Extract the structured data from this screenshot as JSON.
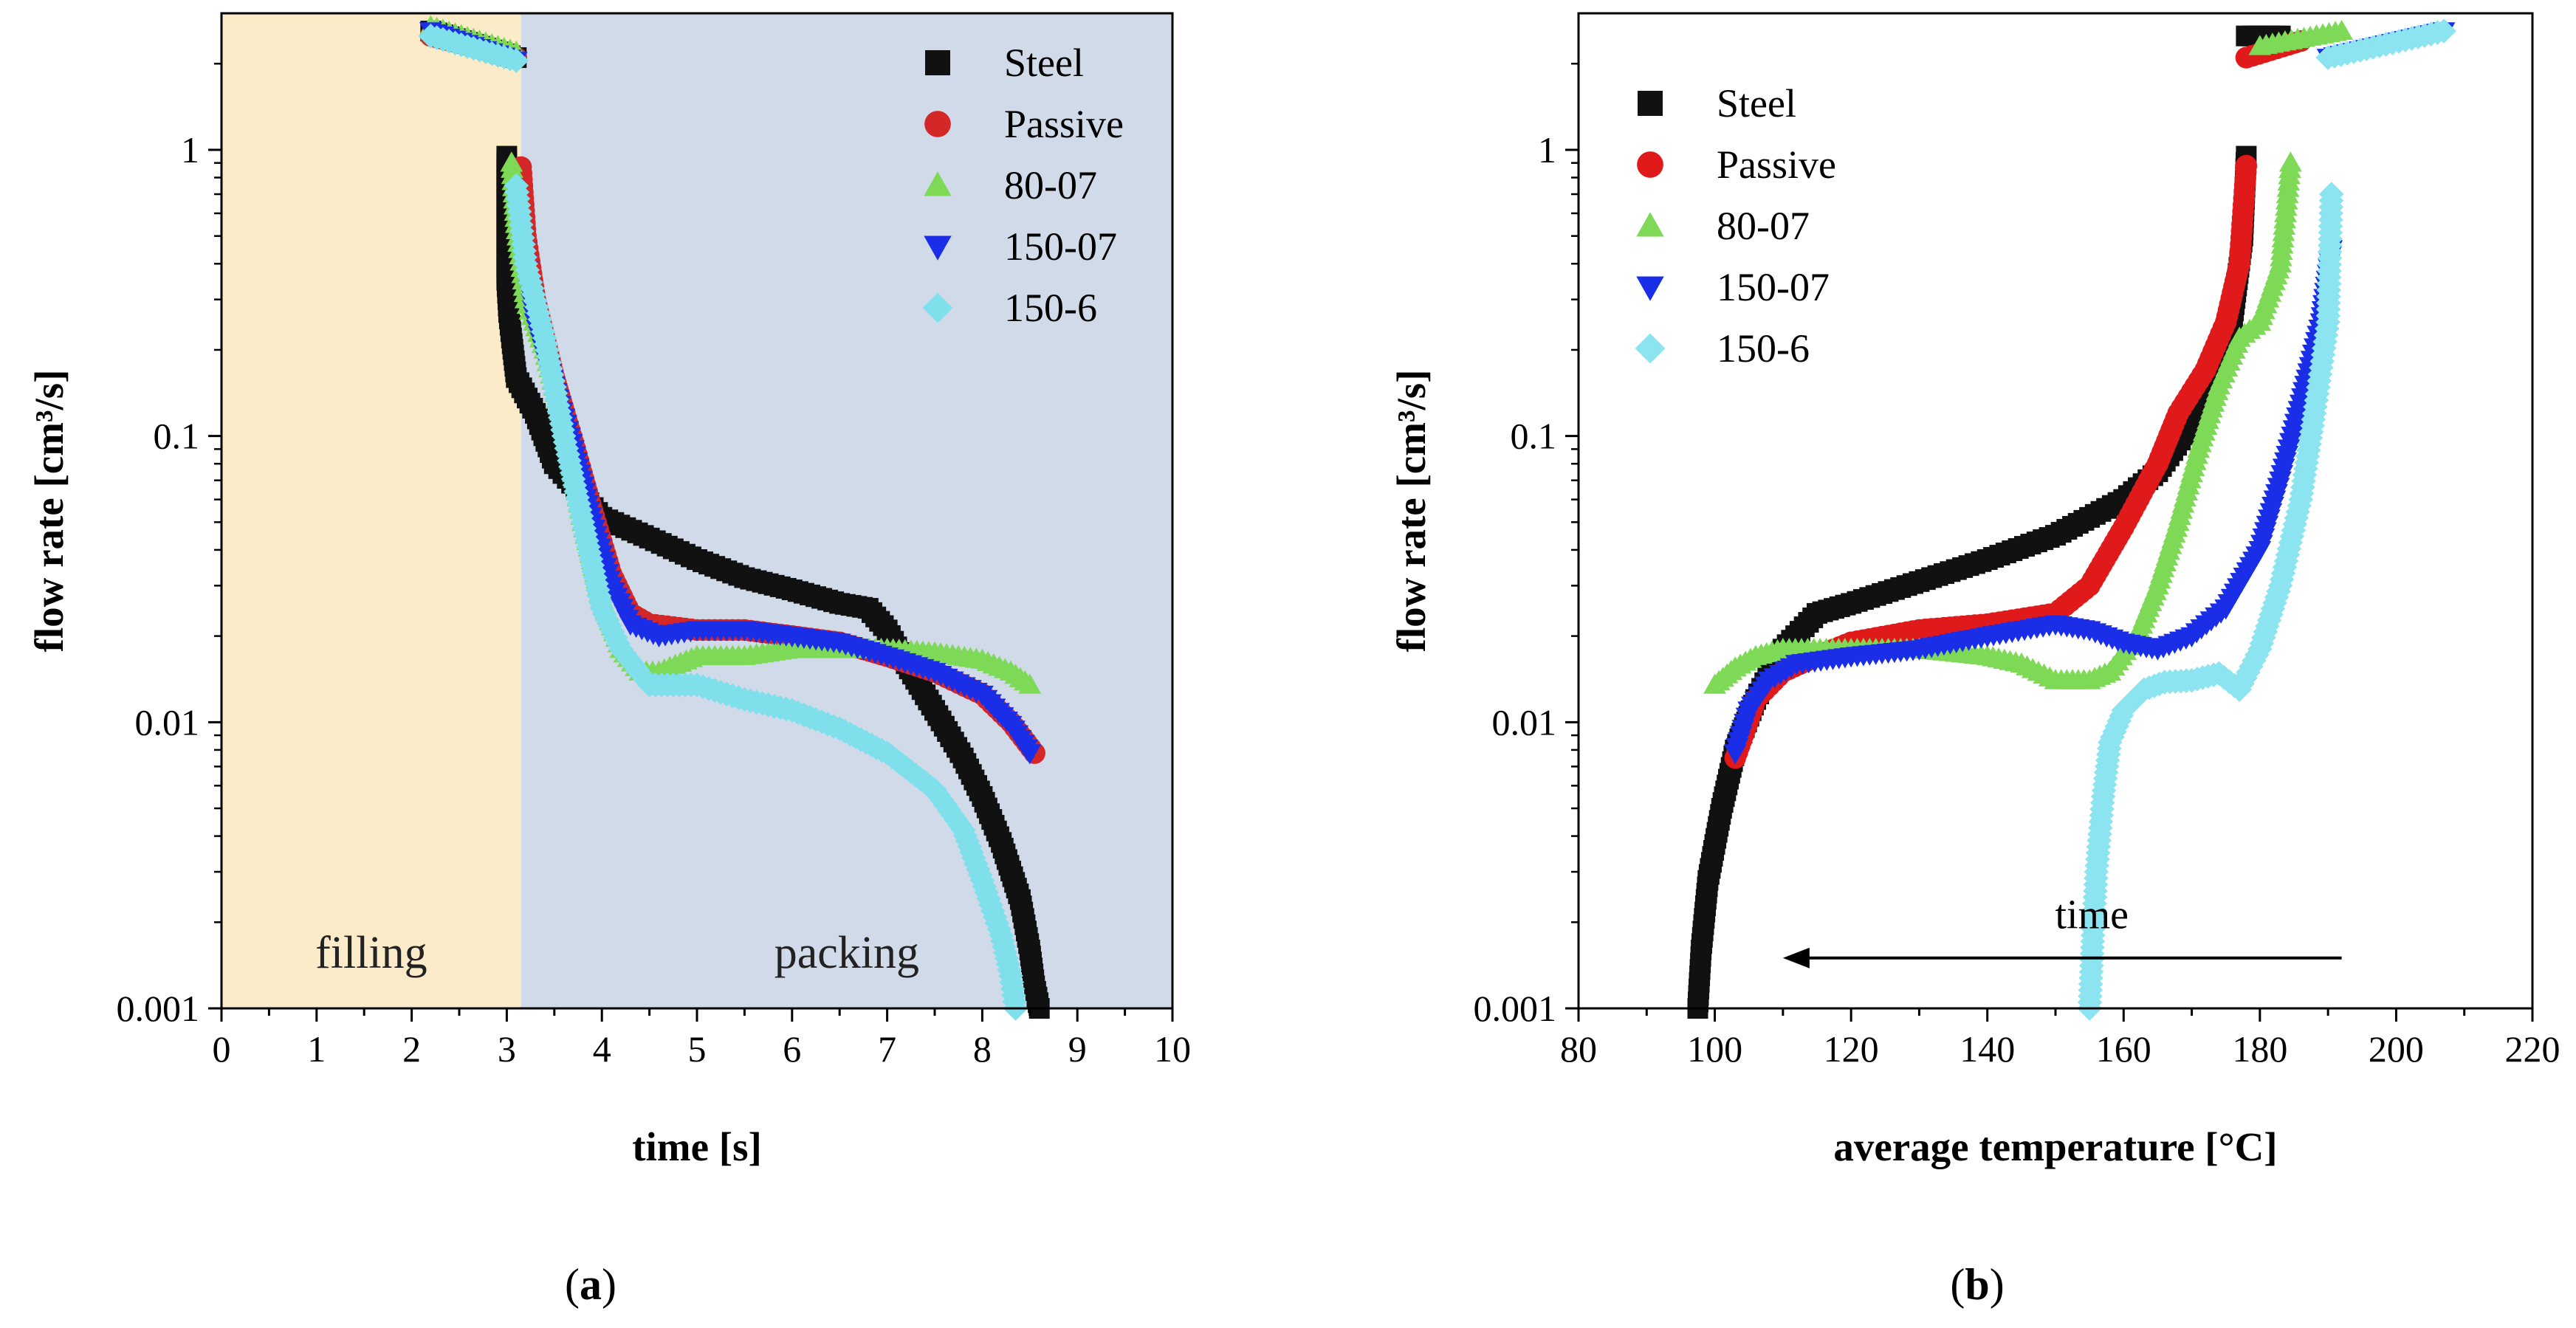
{
  "chart_data": [
    {
      "type": "scatter",
      "panel": "a",
      "caption": "(a)",
      "xlabel": "time [s]",
      "ylabel": "flow rate [cm³/s]",
      "xlim": [
        0,
        10
      ],
      "ylim": [
        0.001,
        3
      ],
      "yscale": "log",
      "xticks": [
        "0",
        "1",
        "2",
        "3",
        "4",
        "5",
        "6",
        "7",
        "8",
        "9",
        "10"
      ],
      "yticks": [
        {
          "v": 1,
          "label": "1"
        },
        {
          "v": 0.1,
          "label": "0.1"
        },
        {
          "v": 0.01,
          "label": "0.01"
        },
        {
          "v": 0.001,
          "label": "0.001"
        }
      ],
      "legend_position": "top-right",
      "regions": [
        {
          "label": "filling",
          "from": 0,
          "to": 3.15,
          "color": "#fcebc8"
        },
        {
          "label": "packing",
          "from": 3.15,
          "to": 10,
          "color": "#d1dae9"
        }
      ],
      "series": [
        {
          "name": "Steel",
          "color": "#111111",
          "marker": "square",
          "x": [
            3.0,
            3.0,
            3.0,
            3.02,
            3.05,
            3.1,
            3.3,
            3.5,
            4.0,
            4.5,
            5.0,
            5.5,
            6.0,
            6.5,
            6.8,
            7.0,
            7.2,
            7.5,
            7.8,
            8.0,
            8.2,
            8.4,
            8.5,
            8.55,
            8.6
          ],
          "y": [
            0.95,
            0.52,
            0.35,
            0.27,
            0.22,
            0.16,
            0.12,
            0.08,
            0.052,
            0.044,
            0.037,
            0.032,
            0.029,
            0.026,
            0.025,
            0.021,
            0.016,
            0.011,
            0.0075,
            0.0055,
            0.0038,
            0.0024,
            0.0016,
            0.0012,
            0.001
          ],
          "top_cluster": {
            "x": [
              2.2,
              3.1
            ],
            "y": [
              2.6,
              2.1
            ]
          }
        },
        {
          "name": "Passive",
          "color": "#d42828",
          "marker": "circle",
          "x": [
            3.15,
            3.2,
            3.3,
            3.5,
            3.7,
            3.9,
            4.1,
            4.3,
            4.5,
            5.0,
            5.5,
            6.0,
            6.5,
            7.0,
            7.5,
            8.0,
            8.3,
            8.55
          ],
          "y": [
            0.87,
            0.5,
            0.3,
            0.16,
            0.095,
            0.055,
            0.033,
            0.024,
            0.022,
            0.021,
            0.021,
            0.02,
            0.019,
            0.017,
            0.015,
            0.0125,
            0.01,
            0.0078
          ],
          "top_cluster": {
            "x": [
              2.2,
              3.1
            ],
            "y": [
              2.5,
              2.1
            ]
          }
        },
        {
          "name": "80-07",
          "color": "#7ed957",
          "marker": "triangle-up",
          "x": [
            3.05,
            3.1,
            3.2,
            3.4,
            3.6,
            3.8,
            4.0,
            4.2,
            4.4,
            4.6,
            5.0,
            5.5,
            6.0,
            6.5,
            7.0,
            7.5,
            8.0,
            8.3,
            8.5
          ],
          "y": [
            0.9,
            0.55,
            0.3,
            0.2,
            0.11,
            0.05,
            0.027,
            0.018,
            0.015,
            0.015,
            0.017,
            0.017,
            0.018,
            0.018,
            0.018,
            0.0175,
            0.0165,
            0.015,
            0.0135
          ],
          "top_cluster": {
            "x": [
              2.2,
              3.1
            ],
            "y": [
              2.7,
              2.2
            ]
          }
        },
        {
          "name": "150-07",
          "color": "#1a2ee8",
          "marker": "triangle-down",
          "x": [
            3.1,
            3.2,
            3.3,
            3.5,
            3.7,
            3.9,
            4.1,
            4.3,
            4.6,
            5.0,
            5.5,
            6.0,
            6.5,
            7.0,
            7.5,
            8.0,
            8.3,
            8.5
          ],
          "y": [
            0.7,
            0.4,
            0.25,
            0.15,
            0.09,
            0.05,
            0.03,
            0.022,
            0.02,
            0.021,
            0.021,
            0.02,
            0.019,
            0.017,
            0.015,
            0.0125,
            0.0098,
            0.0078
          ],
          "top_cluster": {
            "x": [
              2.2,
              3.1
            ],
            "y": [
              2.6,
              2.05
            ]
          }
        },
        {
          "name": "150-6",
          "color": "#7fe0ec",
          "marker": "diamond",
          "x": [
            3.1,
            3.2,
            3.4,
            3.6,
            3.8,
            4.0,
            4.2,
            4.5,
            5.0,
            5.5,
            6.0,
            6.5,
            7.0,
            7.5,
            7.8,
            8.0,
            8.2,
            8.3,
            8.35
          ],
          "y": [
            0.75,
            0.4,
            0.22,
            0.1,
            0.05,
            0.025,
            0.018,
            0.0135,
            0.0135,
            0.012,
            0.011,
            0.0095,
            0.0078,
            0.0058,
            0.0042,
            0.0028,
            0.0018,
            0.0013,
            0.001
          ],
          "top_cluster": {
            "x": [
              2.2,
              3.1
            ],
            "y": [
              2.5,
              2.05
            ]
          }
        }
      ]
    },
    {
      "type": "scatter",
      "panel": "b",
      "caption": "(b)",
      "xlabel": "average temperature [°C]",
      "ylabel": "flow rate [cm³/s]",
      "xlim": [
        80,
        220
      ],
      "ylim": [
        0.001,
        3
      ],
      "yscale": "log",
      "xticks": [
        "80",
        "100",
        "120",
        "140",
        "160",
        "180",
        "200",
        "220"
      ],
      "yticks": [
        {
          "v": 1,
          "label": "1"
        },
        {
          "v": 0.1,
          "label": "0.1"
        },
        {
          "v": 0.01,
          "label": "0.01"
        },
        {
          "v": 0.001,
          "label": "0.001"
        }
      ],
      "legend_position": "top-left",
      "annotation": {
        "text": "time",
        "arrow_from": 192,
        "arrow_to": 110,
        "y": 0.0015
      },
      "series": [
        {
          "name": "Steel",
          "color": "#111111",
          "marker": "square",
          "x": [
            97.5,
            98,
            99,
            101,
            103,
            106,
            110,
            115,
            120,
            130,
            140,
            150,
            160,
            165,
            170,
            174,
            176,
            177.5,
            178
          ],
          "y": [
            0.001,
            0.0016,
            0.0028,
            0.005,
            0.008,
            0.012,
            0.018,
            0.024,
            0.026,
            0.031,
            0.037,
            0.045,
            0.06,
            0.075,
            0.11,
            0.17,
            0.26,
            0.5,
            0.95
          ],
          "top_cluster": {
            "x": [
              178,
              183
            ],
            "y": [
              2.5,
              2.5
            ]
          }
        },
        {
          "name": "Passive",
          "color": "#e01a1a",
          "marker": "circle",
          "x": [
            103,
            106,
            110,
            115,
            120,
            130,
            140,
            150,
            155,
            160,
            165,
            168,
            172,
            175,
            177,
            178
          ],
          "y": [
            0.0075,
            0.012,
            0.015,
            0.017,
            0.019,
            0.021,
            0.022,
            0.024,
            0.03,
            0.048,
            0.08,
            0.12,
            0.17,
            0.25,
            0.4,
            0.88
          ],
          "top_cluster": {
            "x": [
              178,
              186
            ],
            "y": [
              2.1,
              2.4
            ]
          }
        },
        {
          "name": "80-07",
          "color": "#7ed957",
          "marker": "triangle-up",
          "x": [
            100,
            103,
            106,
            110,
            120,
            130,
            140,
            145,
            150,
            155,
            158,
            162,
            165,
            168,
            171,
            174,
            177,
            180,
            183,
            184.5
          ],
          "y": [
            0.0135,
            0.0155,
            0.017,
            0.018,
            0.018,
            0.018,
            0.017,
            0.016,
            0.014,
            0.014,
            0.015,
            0.02,
            0.03,
            0.05,
            0.09,
            0.15,
            0.22,
            0.25,
            0.4,
            0.9
          ],
          "top_cluster": {
            "x": [
              180,
              192
            ],
            "y": [
              2.3,
              2.6
            ]
          }
        },
        {
          "name": "150-07",
          "color": "#1a2ee8",
          "marker": "triangle-down",
          "x": [
            103,
            105,
            108,
            112,
            120,
            130,
            140,
            150,
            155,
            160,
            165,
            170,
            175,
            180,
            183,
            186,
            189,
            190.5
          ],
          "y": [
            0.0078,
            0.011,
            0.014,
            0.016,
            0.017,
            0.018,
            0.02,
            0.022,
            0.021,
            0.019,
            0.018,
            0.02,
            0.025,
            0.04,
            0.07,
            0.13,
            0.25,
            0.45
          ],
          "top_cluster": {
            "x": [
              190,
              207
            ],
            "y": [
              2.1,
              2.6
            ]
          }
        },
        {
          "name": "150-6",
          "color": "#8ce4f0",
          "marker": "diamond",
          "x": [
            155,
            155.5,
            156,
            157,
            158,
            160,
            163,
            166,
            170,
            174,
            177,
            180,
            183,
            186,
            188,
            190,
            190.5
          ],
          "y": [
            0.001,
            0.0018,
            0.003,
            0.0055,
            0.0085,
            0.011,
            0.013,
            0.0138,
            0.014,
            0.0148,
            0.013,
            0.018,
            0.03,
            0.06,
            0.12,
            0.25,
            0.7
          ],
          "top_cluster": {
            "x": [
              190,
              207
            ],
            "y": [
              2.1,
              2.6
            ]
          }
        }
      ]
    }
  ]
}
